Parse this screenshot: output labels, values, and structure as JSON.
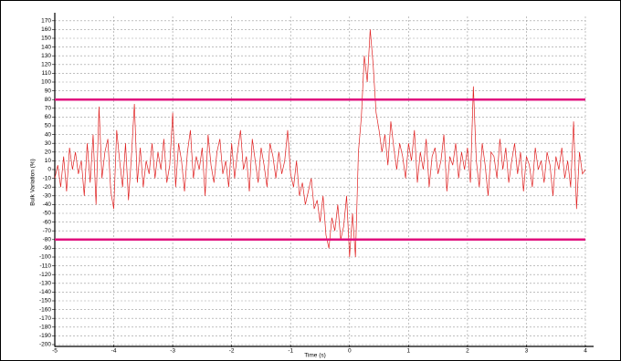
{
  "chart_data": {
    "type": "line",
    "xlabel": "Time (s)",
    "ylabel": "Bulk Variation (%)",
    "xlim": [
      -5,
      4
    ],
    "ylim": [
      -200,
      175
    ],
    "xticks": [
      -5,
      -4,
      -3,
      -2,
      -1,
      0,
      1,
      2,
      3,
      4
    ],
    "yticks": [
      -200,
      -190,
      -180,
      -170,
      -160,
      -150,
      -140,
      -130,
      -120,
      -110,
      -100,
      -90,
      -80,
      -70,
      -60,
      -50,
      -40,
      -30,
      -20,
      -10,
      0,
      10,
      20,
      30,
      40,
      50,
      60,
      70,
      80,
      90,
      100,
      110,
      120,
      130,
      140,
      150,
      160,
      170
    ],
    "grid": true,
    "threshold_lines": [
      {
        "value": 80,
        "color": "#e0107e"
      },
      {
        "value": -80,
        "color": "#e0107e"
      }
    ],
    "x": [
      -5,
      -4.95,
      -4.9,
      -4.85,
      -4.8,
      -4.75,
      -4.7,
      -4.65,
      -4.6,
      -4.55,
      -4.5,
      -4.45,
      -4.4,
      -4.35,
      -4.3,
      -4.25,
      -4.2,
      -4.15,
      -4.1,
      -4.05,
      -4,
      -3.95,
      -3.9,
      -3.85,
      -3.8,
      -3.75,
      -3.7,
      -3.65,
      -3.6,
      -3.55,
      -3.5,
      -3.45,
      -3.4,
      -3.35,
      -3.3,
      -3.25,
      -3.2,
      -3.15,
      -3.1,
      -3.05,
      -3,
      -2.95,
      -2.9,
      -2.85,
      -2.8,
      -2.75,
      -2.7,
      -2.65,
      -2.6,
      -2.55,
      -2.5,
      -2.45,
      -2.4,
      -2.35,
      -2.3,
      -2.25,
      -2.2,
      -2.15,
      -2.1,
      -2.05,
      -2,
      -1.95,
      -1.9,
      -1.85,
      -1.8,
      -1.75,
      -1.7,
      -1.65,
      -1.6,
      -1.55,
      -1.5,
      -1.45,
      -1.4,
      -1.35,
      -1.3,
      -1.25,
      -1.2,
      -1.15,
      -1.1,
      -1.05,
      -1,
      -0.95,
      -0.9,
      -0.85,
      -0.8,
      -0.75,
      -0.7,
      -0.65,
      -0.6,
      -0.55,
      -0.5,
      -0.45,
      -0.4,
      -0.35,
      -0.3,
      -0.25,
      -0.2,
      -0.15,
      -0.1,
      -0.05,
      0,
      0.05,
      0.1,
      0.15,
      0.2,
      0.25,
      0.3,
      0.35,
      0.4,
      0.45,
      0.5,
      0.55,
      0.6,
      0.65,
      0.7,
      0.75,
      0.8,
      0.85,
      0.9,
      0.95,
      1,
      1.05,
      1.1,
      1.15,
      1.2,
      1.25,
      1.3,
      1.35,
      1.4,
      1.45,
      1.5,
      1.55,
      1.6,
      1.65,
      1.7,
      1.75,
      1.8,
      1.85,
      1.9,
      1.95,
      2,
      2.05,
      2.1,
      2.15,
      2.2,
      2.25,
      2.3,
      2.35,
      2.4,
      2.45,
      2.5,
      2.55,
      2.6,
      2.65,
      2.7,
      2.75,
      2.8,
      2.85,
      2.9,
      2.95,
      3,
      3.05,
      3.1,
      3.15,
      3.2,
      3.25,
      3.3,
      3.35,
      3.4,
      3.45,
      3.5,
      3.55,
      3.6,
      3.65,
      3.7,
      3.75,
      3.8,
      3.85,
      3.9,
      3.95,
      4
    ],
    "series": [
      {
        "color": "#e02020",
        "values": [
          -10,
          5,
          -20,
          15,
          -25,
          25,
          0,
          20,
          -5,
          10,
          -30,
          30,
          -15,
          40,
          -40,
          72,
          -10,
          20,
          35,
          -25,
          -45,
          45,
          10,
          -20,
          30,
          -35,
          15,
          75,
          -15,
          25,
          -20,
          10,
          -5,
          30,
          -10,
          20,
          0,
          35,
          -15,
          5,
          65,
          -20,
          30,
          10,
          -25,
          20,
          45,
          -10,
          15,
          0,
          25,
          -30,
          40,
          5,
          -15,
          20,
          35,
          -5,
          10,
          -20,
          30,
          -10,
          20,
          45,
          0,
          15,
          -25,
          35,
          10,
          -15,
          25,
          5,
          -20,
          30,
          15,
          -10,
          20,
          -5,
          10,
          45,
          -5,
          -20,
          10,
          -30,
          -15,
          -40,
          -25,
          -10,
          -45,
          -35,
          -60,
          -30,
          -75,
          -90,
          -55,
          -70,
          -40,
          -80,
          -65,
          -30,
          -100,
          -50,
          -100,
          20,
          60,
          130,
          100,
          160,
          120,
          65,
          45,
          20,
          40,
          5,
          55,
          25,
          0,
          30,
          15,
          -10,
          30,
          10,
          45,
          -15,
          20,
          0,
          35,
          -20,
          15,
          25,
          -5,
          10,
          40,
          -25,
          15,
          5,
          30,
          -10,
          20,
          0,
          25,
          -15,
          95,
          10,
          -20,
          30,
          5,
          -30,
          20,
          15,
          -10,
          35,
          0,
          25,
          -15,
          10,
          30,
          -5,
          20,
          -25,
          15,
          5,
          -20,
          25,
          0,
          10,
          -15,
          20,
          5,
          -30,
          15,
          0,
          25,
          -10,
          10,
          -20,
          55,
          -45,
          20,
          -5,
          0
        ]
      }
    ]
  }
}
